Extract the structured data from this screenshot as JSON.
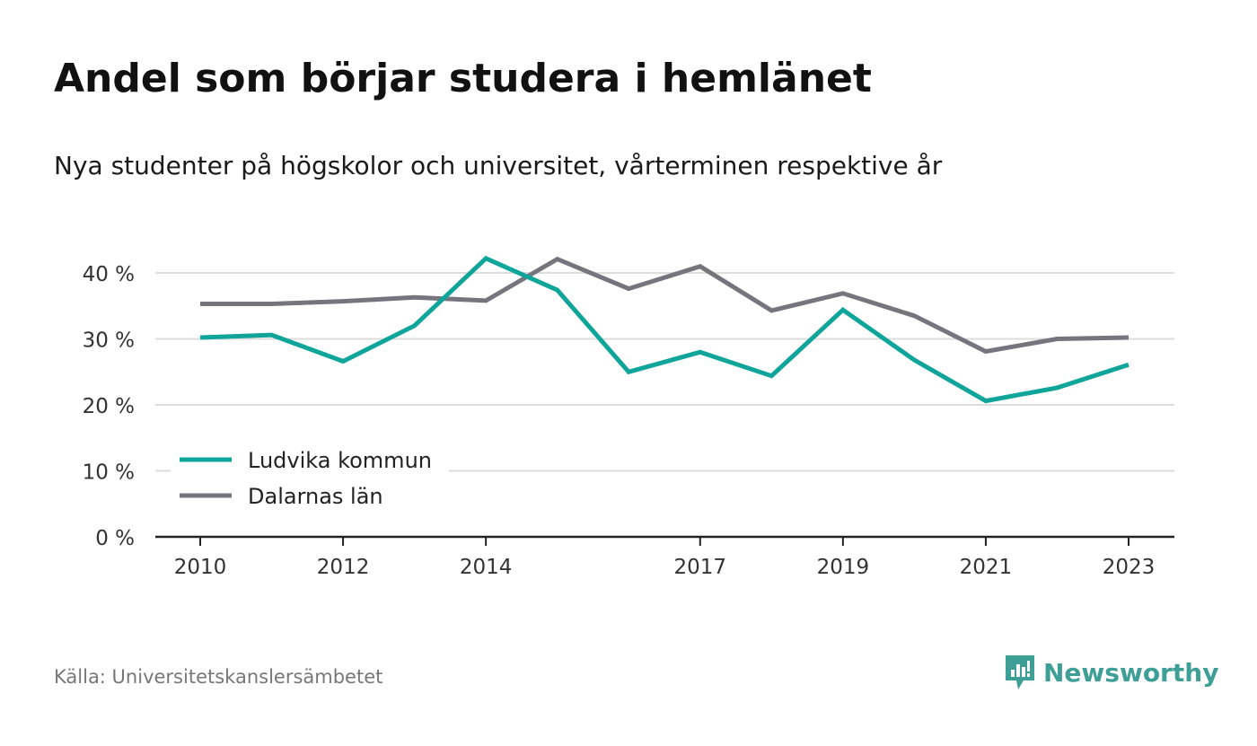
{
  "header": {
    "title": "Andel som börjar studera i hemlänet",
    "subtitle": "Nya studenter på högskolor och universitet, vårterminen respektive år"
  },
  "footer": {
    "source": "Källa: Universitetskanslersämbetet",
    "brand": "Newsworthy",
    "brand_icon": "newsworthy-logo-icon",
    "brand_color": "#3d9f96"
  },
  "chart_data": {
    "type": "line",
    "title": "Andel som börjar studera i hemlänet",
    "subtitle": "Nya studenter på högskolor och universitet, vårterminen respektive år",
    "x": [
      2010,
      2011,
      2012,
      2013,
      2014,
      2015,
      2016,
      2017,
      2018,
      2019,
      2020,
      2021,
      2022,
      2023
    ],
    "x_tick_labels": [
      "2010",
      "2012",
      "2014",
      "2017",
      "2019",
      "2021",
      "2023"
    ],
    "y_ticks": [
      0,
      10,
      20,
      30,
      40
    ],
    "y_tick_labels": [
      "0 %",
      "10 %",
      "20 %",
      "30 %",
      "40 %"
    ],
    "ylim": [
      0,
      43
    ],
    "grid": true,
    "legend_position": "bottom-left",
    "series": [
      {
        "name": "Ludvika kommun",
        "color": "#10a59a",
        "values": [
          30.2,
          30.6,
          26.6,
          32.0,
          42.2,
          37.4,
          25.0,
          28.0,
          24.4,
          34.4,
          26.8,
          20.6,
          22.6,
          26.1
        ]
      },
      {
        "name": "Dalarnas län",
        "color": "#76757d",
        "values": [
          35.3,
          35.3,
          35.7,
          36.3,
          35.8,
          42.1,
          37.6,
          41.0,
          34.3,
          36.9,
          33.5,
          28.1,
          30.0,
          30.2
        ]
      }
    ]
  }
}
